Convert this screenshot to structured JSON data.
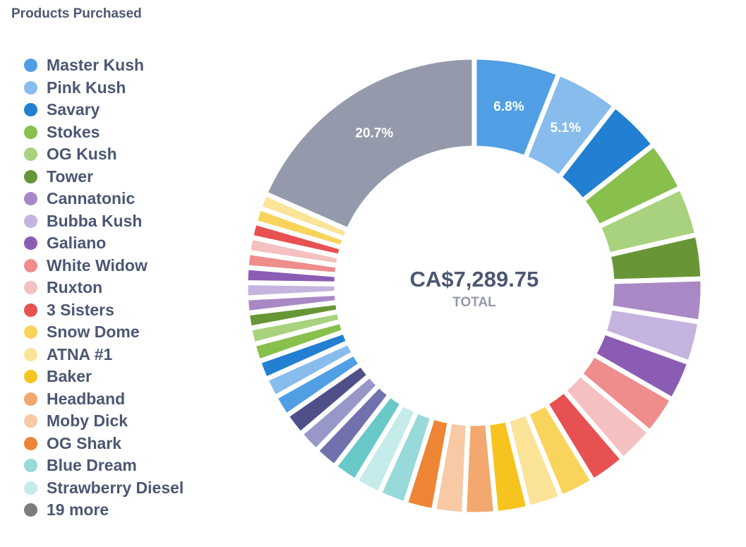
{
  "chart_data": {
    "type": "pie",
    "title": "Products Purchased",
    "center": {
      "value": "CA$7,289.75",
      "label": "TOTAL"
    },
    "slices": [
      {
        "name": "Master Kush",
        "percent": 6.8,
        "color": "#509ee3",
        "label": "6.8%"
      },
      {
        "name": "Pink Kush",
        "percent": 5.1,
        "color": "#88bcec",
        "label": "5.1%"
      },
      {
        "name": "Savary",
        "percent": 4.3,
        "color": "#227fd2"
      },
      {
        "name": "Stokes",
        "percent": 4.0,
        "color": "#88bf4d"
      },
      {
        "name": "OG Kush",
        "percent": 3.9,
        "color": "#a8d27d"
      },
      {
        "name": "Tower",
        "percent": 3.5,
        "color": "#689636"
      },
      {
        "name": "Cannatonic",
        "percent": 3.4,
        "color": "#a989c5"
      },
      {
        "name": "Bubba Kush",
        "percent": 3.3,
        "color": "#c5b4df"
      },
      {
        "name": "Galiano",
        "percent": 3.2,
        "color": "#8b5cb4"
      },
      {
        "name": "White Widow",
        "percent": 3.1,
        "color": "#ef8c8c"
      },
      {
        "name": "Ruxton",
        "percent": 3.0,
        "color": "#f5c0c0"
      },
      {
        "name": "3 Sisters",
        "percent": 2.9,
        "color": "#e85151"
      },
      {
        "name": "Snow Dome",
        "percent": 2.8,
        "color": "#f9d45c"
      },
      {
        "name": "ATNA #1",
        "percent": 2.7,
        "color": "#fbe398"
      },
      {
        "name": "Baker",
        "percent": 2.6,
        "color": "#f7c41f"
      },
      {
        "name": "Headband",
        "percent": 2.5,
        "color": "#f2a86f"
      },
      {
        "name": "Moby Dick",
        "percent": 2.4,
        "color": "#f7c9a5"
      },
      {
        "name": "OG Shark",
        "percent": 2.3,
        "color": "#ed8535"
      },
      {
        "name": "Blue Dream",
        "percent": 2.2,
        "color": "#98d9d9"
      },
      {
        "name": "Strawberry Diesel",
        "percent": 2.1,
        "color": "#c6ebeb"
      },
      {
        "percent": 2.0,
        "color": "#69c8c8"
      },
      {
        "percent": 1.9,
        "color": "#7172ad"
      },
      {
        "percent": 1.8,
        "color": "#9798c8"
      },
      {
        "percent": 1.8,
        "color": "#4f4f8a"
      },
      {
        "percent": 1.7,
        "color": "#509ee3"
      },
      {
        "percent": 1.6,
        "color": "#88bcec"
      },
      {
        "percent": 1.5,
        "color": "#227fd2"
      },
      {
        "percent": 1.4,
        "color": "#88bf4d"
      },
      {
        "percent": 1.3,
        "color": "#a8d27d"
      },
      {
        "percent": 1.2,
        "color": "#689636"
      },
      {
        "percent": 1.2,
        "color": "#a989c5"
      },
      {
        "percent": 1.2,
        "color": "#c5b4df"
      },
      {
        "percent": 1.2,
        "color": "#8b5cb4"
      },
      {
        "percent": 1.2,
        "color": "#ef8c8c"
      },
      {
        "percent": 1.2,
        "color": "#f5c0c0"
      },
      {
        "percent": 1.2,
        "color": "#e85151"
      },
      {
        "percent": 1.2,
        "color": "#f9d45c"
      },
      {
        "percent": 1.2,
        "color": "#fbe398"
      },
      {
        "name": "19 more",
        "percent": 20.7,
        "color": "#949aab",
        "label": "20.7%"
      }
    ],
    "legend": [
      {
        "label": "Master Kush",
        "color": "#509ee3"
      },
      {
        "label": "Pink Kush",
        "color": "#88bcec"
      },
      {
        "label": "Savary",
        "color": "#227fd2"
      },
      {
        "label": "Stokes",
        "color": "#88bf4d"
      },
      {
        "label": "OG Kush",
        "color": "#a8d27d"
      },
      {
        "label": "Tower",
        "color": "#689636"
      },
      {
        "label": "Cannatonic",
        "color": "#a989c5"
      },
      {
        "label": "Bubba Kush",
        "color": "#c5b4df"
      },
      {
        "label": "Galiano",
        "color": "#8b5cb4"
      },
      {
        "label": "White Widow",
        "color": "#ef8c8c"
      },
      {
        "label": "Ruxton",
        "color": "#f5c0c0"
      },
      {
        "label": "3 Sisters",
        "color": "#e85151"
      },
      {
        "label": "Snow Dome",
        "color": "#f9d45c"
      },
      {
        "label": "ATNA #1",
        "color": "#fbe398"
      },
      {
        "label": "Baker",
        "color": "#f7c41f"
      },
      {
        "label": "Headband",
        "color": "#f2a86f"
      },
      {
        "label": "Moby Dick",
        "color": "#f7c9a5"
      },
      {
        "label": "OG Shark",
        "color": "#ed8535"
      },
      {
        "label": "Blue Dream",
        "color": "#98d9d9"
      },
      {
        "label": "Strawberry Diesel",
        "color": "#c6ebeb"
      },
      {
        "label": "19 more",
        "color": "#7c7c7c"
      }
    ],
    "legend_position": "left"
  }
}
